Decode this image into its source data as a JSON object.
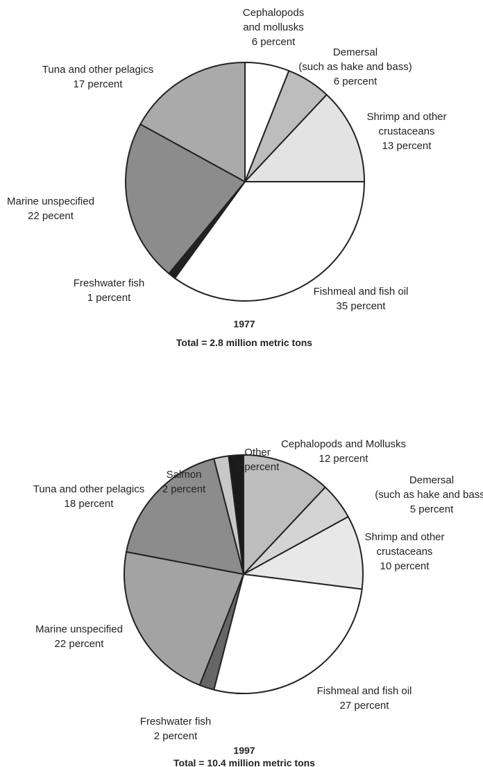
{
  "chart_data": [
    {
      "type": "pie",
      "title": "1977",
      "subtitle": "Total = 2.8 million metric tons",
      "categories": [
        "Cephalopods\nand mollusks",
        "Demersal\n(such as hake and bass)",
        "Shrimp and other\ncrustaceans",
        "Fishmeal and fish oil",
        "Freshwater fish",
        "Marine unspecified",
        "Tuna and other pelagics"
      ],
      "values": [
        6,
        6,
        13,
        35,
        1,
        22,
        17
      ],
      "value_labels": [
        "6 percent",
        "6 percent",
        "13 percent",
        "35 percent",
        "1 percent",
        "22 pecent",
        "17 percent"
      ],
      "colors": [
        "#ffffff",
        "#bdbdbd",
        "#e3e3e3",
        "#ffffff",
        "#222222",
        "#8c8c8c",
        "#aaaaaa"
      ]
    },
    {
      "type": "pie",
      "title": "1997",
      "subtitle": "Total = 10.4 million metric tons",
      "categories": [
        "Cephalopods and Mollusks",
        "Demersal\n(such as hake and bass)",
        "Shrimp and other\ncrustaceans",
        "Fishmeal and fish oil",
        "Freshwater fish",
        "Marine unspecified",
        "Tuna and other pelagics",
        "Salmon",
        "Other"
      ],
      "values": [
        12,
        5,
        10,
        27,
        2,
        22,
        18,
        2,
        2
      ],
      "value_labels": [
        "12 percent",
        "5 percent",
        "10 percent",
        "27 percent",
        "2 percent",
        "22 percent",
        "18 percent",
        "2 percent",
        "2 percent"
      ],
      "colors": [
        "#bdbdbd",
        "#d4d4d4",
        "#e8e8e8",
        "#ffffff",
        "#666666",
        "#a3a3a3",
        "#8c8c8c",
        "#c8c8c8",
        "#1a1a1a"
      ]
    }
  ]
}
